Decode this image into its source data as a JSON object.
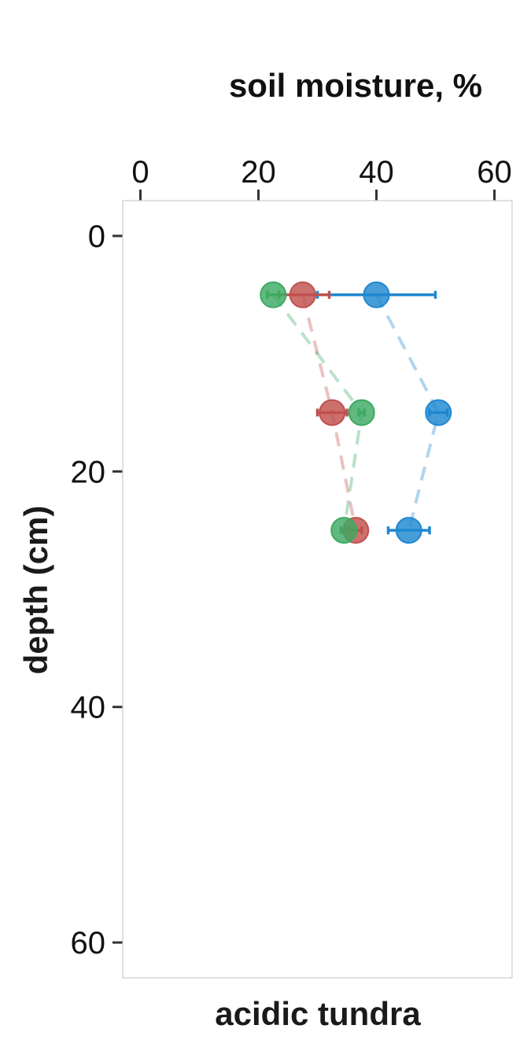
{
  "chart_data": {
    "type": "scatter",
    "title": "soil moisture, %",
    "xlabel": "acidic tundra",
    "ylabel": "depth (cm)",
    "x_axis_position": "top",
    "y_axis_reversed": true,
    "xlim": [
      -3,
      63
    ],
    "ylim": [
      63,
      -3
    ],
    "x_ticks": [
      0,
      20,
      40,
      60
    ],
    "y_ticks": [
      0,
      20,
      40,
      60
    ],
    "grid": false,
    "legend": "none",
    "series": [
      {
        "color": "#1f88d0",
        "line_style": "dashed",
        "points": [
          {
            "x": 40,
            "y": 5,
            "xerr_low": 30,
            "xerr_high": 50
          },
          {
            "x": 50.5,
            "y": 15,
            "xerr_low": 49,
            "xerr_high": 52
          },
          {
            "x": 45.5,
            "y": 25,
            "xerr_low": 42,
            "xerr_high": 49
          }
        ]
      },
      {
        "color": "#c0504d",
        "line_style": "dashed",
        "points": [
          {
            "x": 27.5,
            "y": 5,
            "xerr_low": 23.5,
            "xerr_high": 32
          },
          {
            "x": 32.5,
            "y": 15,
            "xerr_low": 30,
            "xerr_high": 35
          },
          {
            "x": 36.5,
            "y": 25,
            "xerr_low": 35.5,
            "xerr_high": 37.5
          }
        ]
      },
      {
        "color": "#3daa63",
        "line_style": "dashed",
        "points": [
          {
            "x": 22.5,
            "y": 5,
            "xerr_low": 21.5,
            "xerr_high": 23.5
          },
          {
            "x": 37.5,
            "y": 15,
            "xerr_low": 37,
            "xerr_high": 38
          },
          {
            "x": 34.5,
            "y": 25,
            "xerr_low": 34,
            "xerr_high": 35
          }
        ]
      }
    ]
  }
}
